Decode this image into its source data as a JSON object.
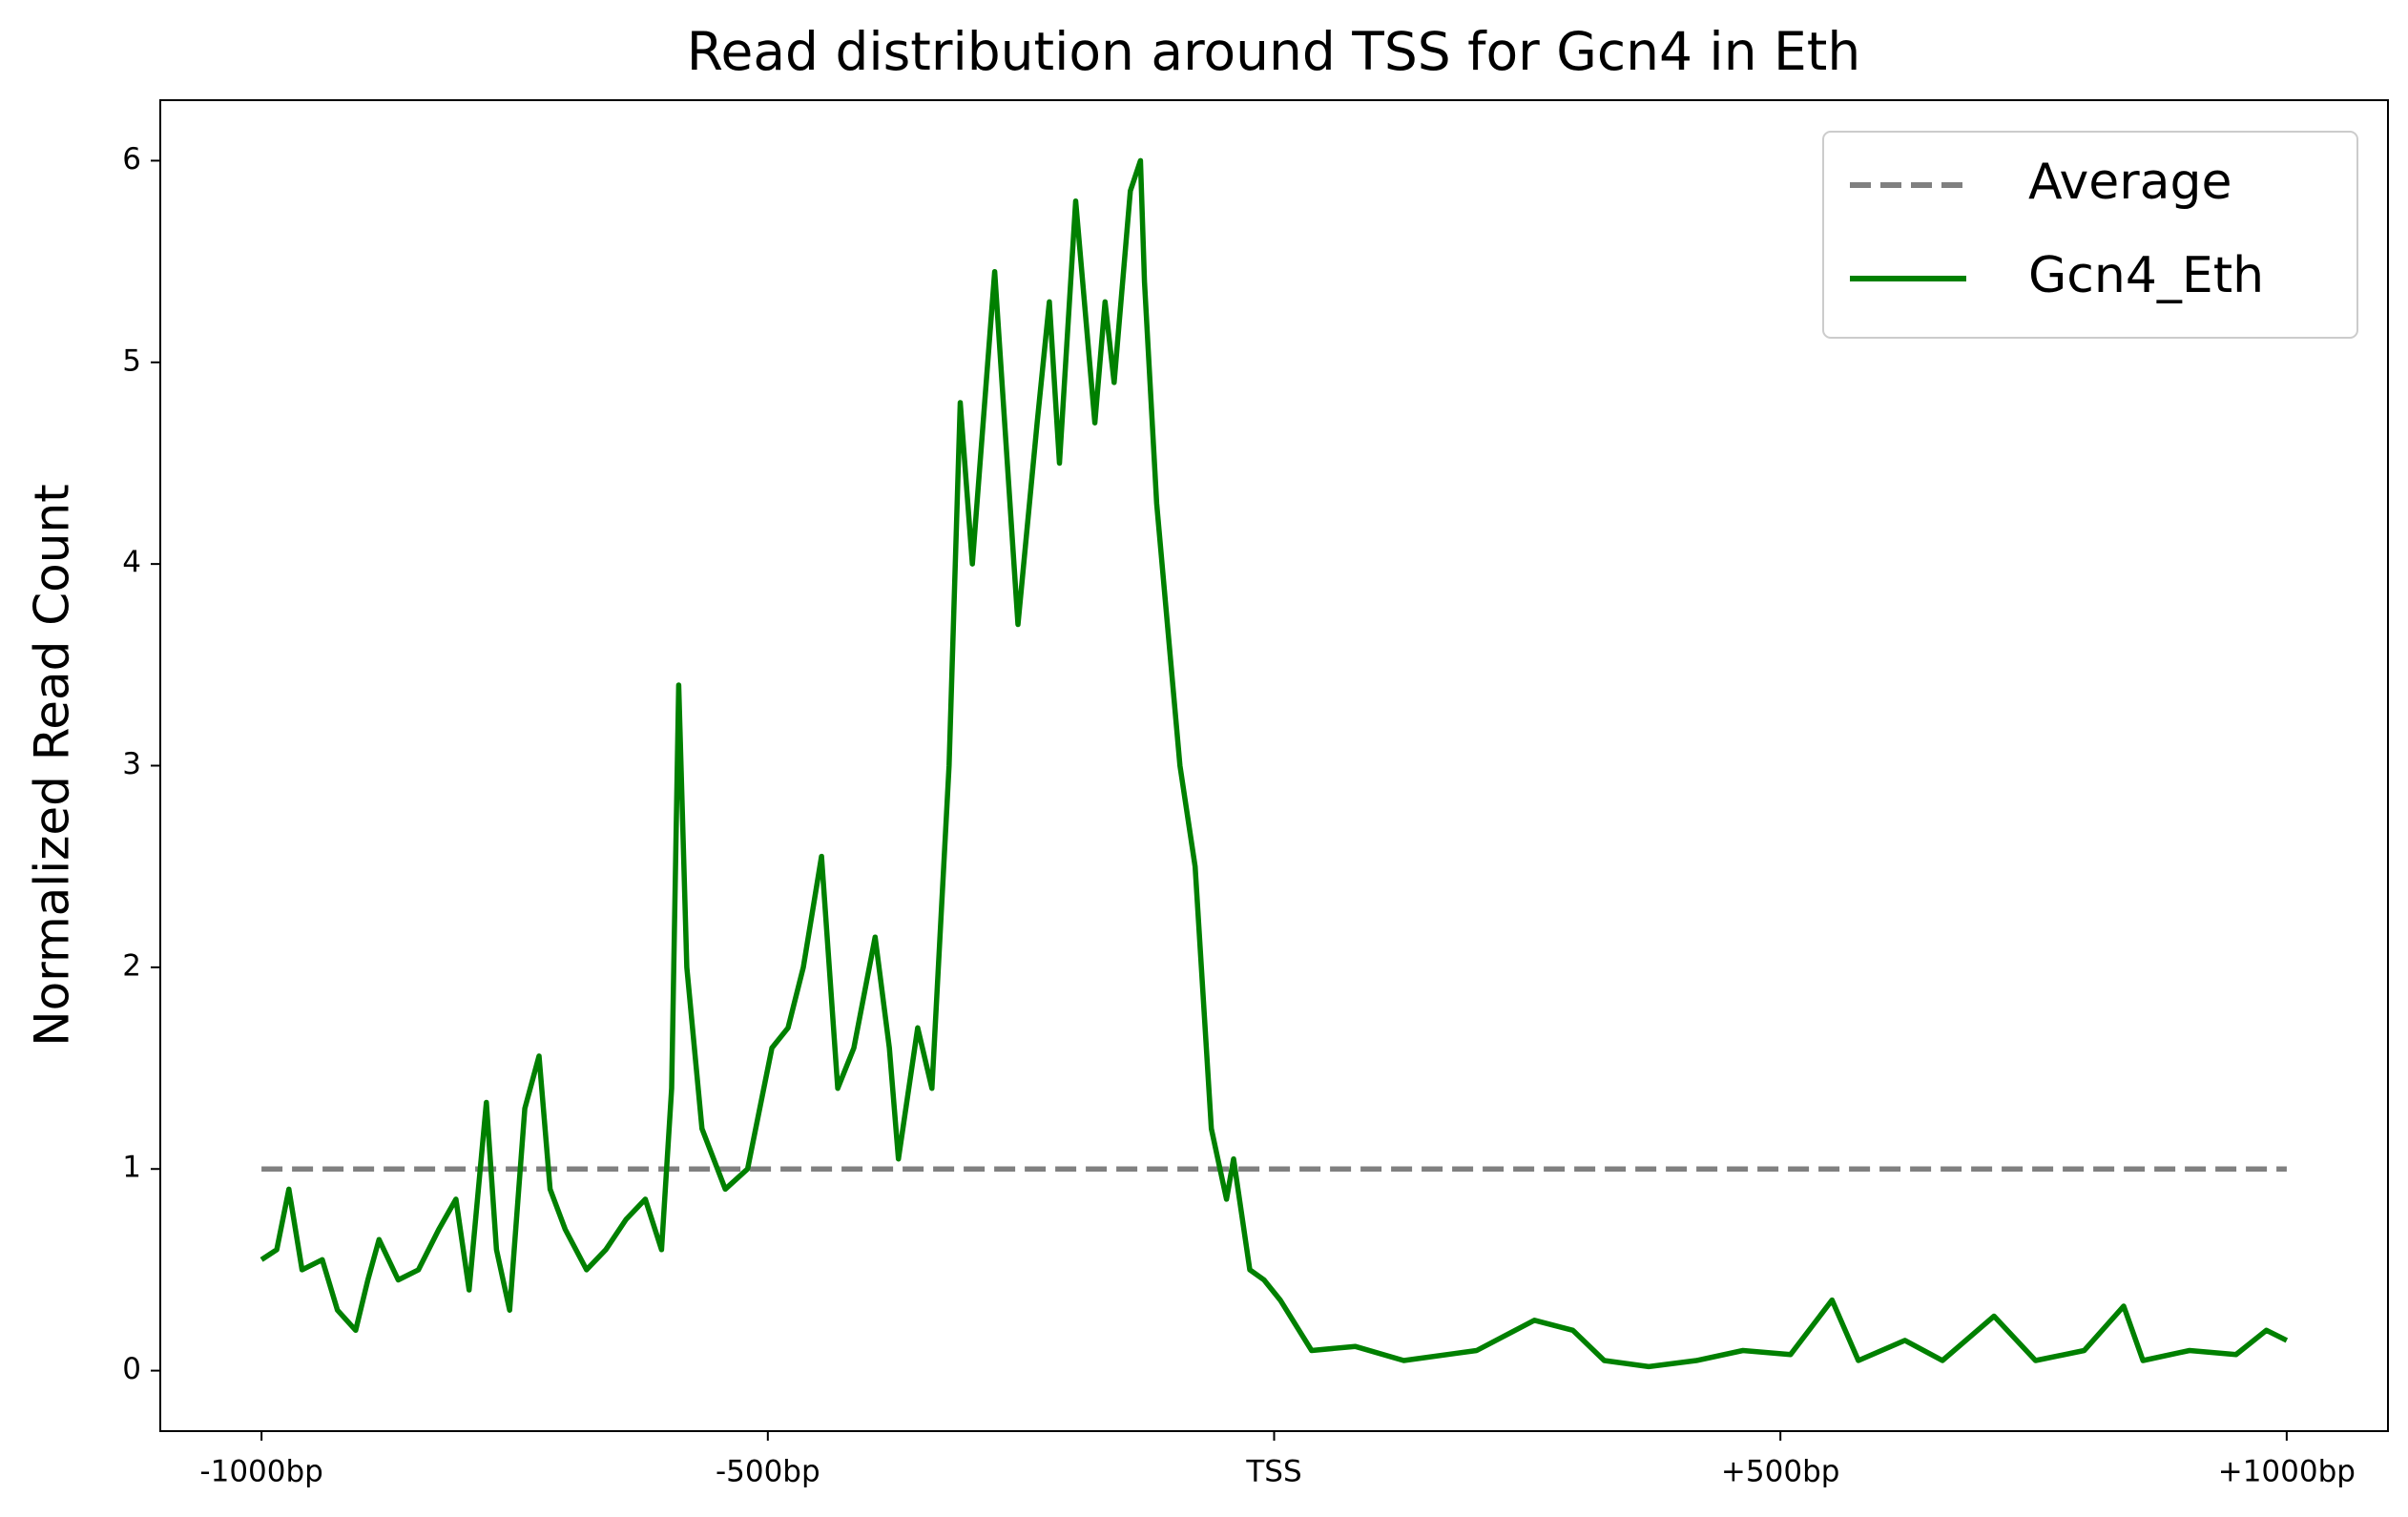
{
  "chart_data": {
    "type": "line",
    "title": "Read distribution around TSS for Gcn4 in Eth",
    "y_label": "Normalized Read Count",
    "xlim": [
      -1100,
      1100
    ],
    "ylim": [
      -0.3,
      6.3
    ],
    "xticks": [
      {
        "value": -1000,
        "label": "-1000bp"
      },
      {
        "value": -500,
        "label": "-500bp"
      },
      {
        "value": 0,
        "label": "TSS"
      },
      {
        "value": 500,
        "label": "+500bp"
      },
      {
        "value": 1000,
        "label": "+1000bp"
      }
    ],
    "yticks": [
      0,
      1,
      2,
      3,
      4,
      5,
      6
    ],
    "legend": "upper right",
    "series": [
      {
        "name": "Average",
        "color": "#808080",
        "dashed": true,
        "x": [
          -1000,
          1000
        ],
        "values": [
          1,
          1
        ]
      },
      {
        "name": "Gcn4_Eth",
        "color": "#008000",
        "dashed": false,
        "x": [
          -1000,
          -985,
          -973,
          -960,
          -940,
          -925,
          -907,
          -895,
          -884,
          -865,
          -845,
          -825,
          -808,
          -795,
          -778,
          -768,
          -755,
          -740,
          -726,
          -715,
          -700,
          -679,
          -660,
          -640,
          -621,
          -605,
          -595,
          -588,
          -580,
          -565,
          -542,
          -520,
          -496,
          -480,
          -465,
          -447,
          -431,
          -415,
          -394,
          -380,
          -371,
          -352,
          -338,
          -321,
          -310,
          -298,
          -276,
          -253,
          -234,
          -222,
          -212,
          -196,
          -177,
          -167,
          -158,
          -142,
          -132,
          -128,
          -116,
          -93,
          -78,
          -62,
          -47,
          -40,
          -24,
          -10,
          6,
          37,
          80,
          128,
          200,
          257,
          295,
          326,
          370,
          417,
          463,
          510,
          551,
          577,
          623,
          660,
          711,
          752,
          800,
          839,
          858,
          904,
          950,
          980,
          1000
        ],
        "values": [
          0.55,
          0.6,
          0.9,
          0.5,
          0.55,
          0.3,
          0.2,
          0.45,
          0.65,
          0.45,
          0.5,
          0.7,
          0.85,
          0.4,
          1.33,
          0.6,
          0.3,
          1.3,
          1.56,
          0.9,
          0.7,
          0.5,
          0.6,
          0.75,
          0.85,
          0.6,
          1.4,
          3.4,
          2.0,
          1.2,
          0.9,
          1.0,
          1.6,
          1.7,
          2.0,
          2.55,
          1.4,
          1.6,
          2.15,
          1.6,
          1.05,
          1.7,
          1.4,
          3.0,
          4.8,
          4.0,
          5.45,
          3.7,
          4.7,
          5.3,
          4.5,
          5.8,
          4.7,
          5.3,
          4.9,
          5.85,
          6.0,
          5.4,
          4.3,
          3.0,
          2.5,
          1.2,
          0.85,
          1.05,
          0.5,
          0.45,
          0.35,
          0.1,
          0.12,
          0.05,
          0.1,
          0.25,
          0.2,
          0.05,
          0.02,
          0.05,
          0.1,
          0.08,
          0.35,
          0.05,
          0.15,
          0.05,
          0.27,
          0.05,
          0.1,
          0.32,
          0.05,
          0.1,
          0.08,
          0.2,
          0.15
        ]
      }
    ]
  }
}
